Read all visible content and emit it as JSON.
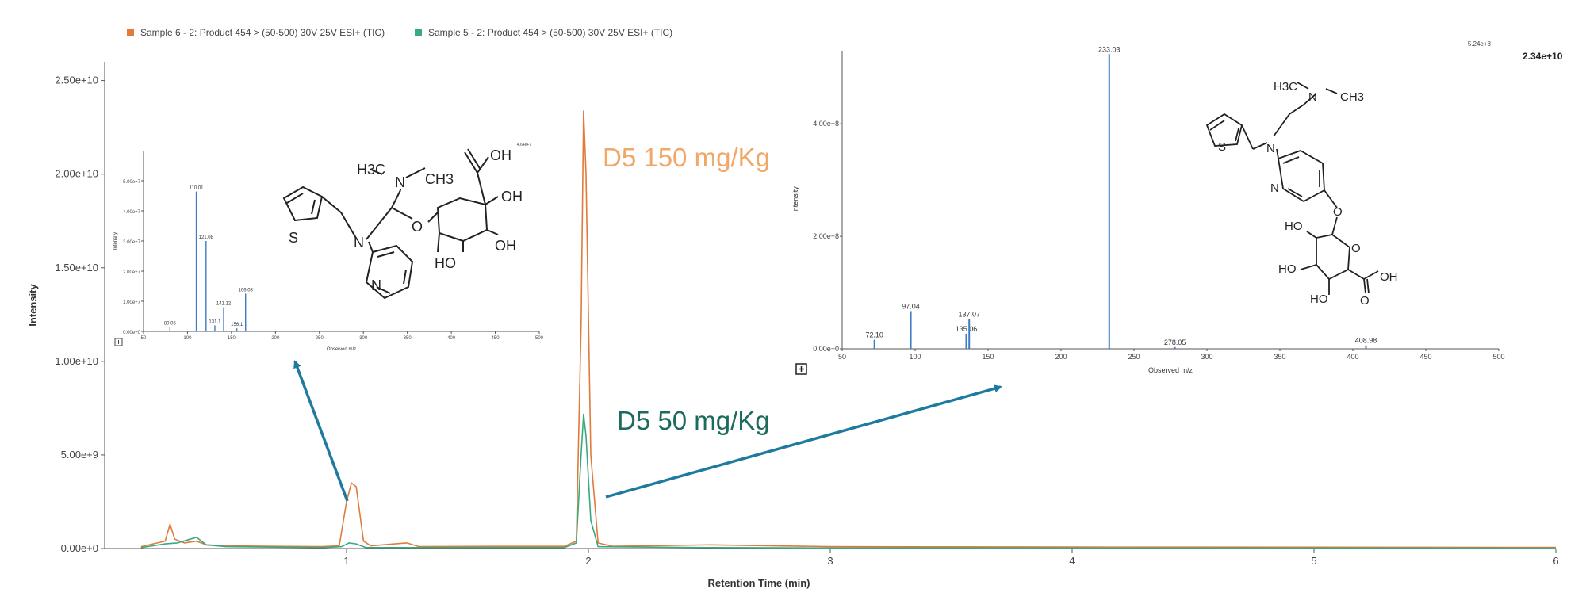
{
  "legend": [
    {
      "label": "Sample 6 - 2: Product 454 > (50-500) 30V 25V ESI+ (TIC)",
      "color": "#e07b3c"
    },
    {
      "label": "Sample 5 - 2: Product 454 > (50-500) 30V 25V ESI+ (TIC)",
      "color": "#3aa882"
    }
  ],
  "annotations": {
    "d5_150": "D5 150 mg/Kg",
    "d5_50": "D5 50 mg/Kg",
    "max_label": "2.34e+10",
    "arrow_color": "#1f7aa0",
    "d5_150_color": "#f0a868",
    "d5_50_color": "#1d6b5e"
  },
  "chart_data": [
    {
      "type": "line",
      "xlabel": "Retention Time (min)",
      "ylabel": "Intensity",
      "xlim": [
        0,
        6
      ],
      "ylim": [
        0,
        26000000000.0
      ],
      "x_ticks": [
        1,
        2,
        3,
        4,
        5,
        6
      ],
      "y_ticks": [
        0,
        5000000000.0,
        10000000000.0,
        15000000000.0,
        20000000000.0,
        25000000000.0
      ],
      "y_tick_labels": [
        "0.00e+0",
        "5.00e+9",
        "1.00e+10",
        "1.50e+10",
        "2.00e+10",
        "2.50e+10"
      ],
      "series": [
        {
          "name": "Sample 6 - 2: Product 454 > (50-500) 30V 25V ESI+ (TIC)",
          "color": "#e07b3c",
          "points": [
            [
              0.15,
              100000000.0
            ],
            [
              0.2,
              250000000.0
            ],
            [
              0.25,
              400000000.0
            ],
            [
              0.27,
              1300000000.0
            ],
            [
              0.29,
              500000000.0
            ],
            [
              0.33,
              300000000.0
            ],
            [
              0.38,
              400000000.0
            ],
            [
              0.42,
              200000000.0
            ],
            [
              0.5,
              150000000.0
            ],
            [
              0.7,
              120000000.0
            ],
            [
              0.9,
              100000000.0
            ],
            [
              0.97,
              150000000.0
            ],
            [
              1.0,
              2500000000.0
            ],
            [
              1.02,
              3500000000.0
            ],
            [
              1.04,
              3300000000.0
            ],
            [
              1.07,
              400000000.0
            ],
            [
              1.1,
              150000000.0
            ],
            [
              1.25,
              300000000.0
            ],
            [
              1.3,
              100000000.0
            ],
            [
              1.6,
              120000000.0
            ],
            [
              1.9,
              120000000.0
            ],
            [
              1.95,
              400000000.0
            ],
            [
              1.97,
              12000000000.0
            ],
            [
              1.98,
              23400000000.0
            ],
            [
              1.99,
              20000000000.0
            ],
            [
              2.01,
              5000000000.0
            ],
            [
              2.04,
              300000000.0
            ],
            [
              2.1,
              120000000.0
            ],
            [
              2.5,
              200000000.0
            ],
            [
              3.0,
              100000000.0
            ],
            [
              4.0,
              80000000.0
            ],
            [
              5.0,
              70000000.0
            ],
            [
              6.0,
              60000000.0
            ]
          ]
        },
        {
          "name": "Sample 5 - 2: Product 454 > (50-500) 30V 25V ESI+ (TIC)",
          "color": "#3aa882",
          "points": [
            [
              0.15,
              50000000.0
            ],
            [
              0.2,
              150000000.0
            ],
            [
              0.25,
              250000000.0
            ],
            [
              0.3,
              300000000.0
            ],
            [
              0.38,
              600000000.0
            ],
            [
              0.42,
              200000000.0
            ],
            [
              0.5,
              100000000.0
            ],
            [
              0.9,
              50000000.0
            ],
            [
              0.98,
              100000000.0
            ],
            [
              1.01,
              300000000.0
            ],
            [
              1.04,
              250000000.0
            ],
            [
              1.08,
              50000000.0
            ],
            [
              1.9,
              50000000.0
            ],
            [
              1.95,
              300000000.0
            ],
            [
              1.97,
              5000000000.0
            ],
            [
              1.98,
              7200000000.0
            ],
            [
              1.99,
              6000000000.0
            ],
            [
              2.01,
              1500000000.0
            ],
            [
              2.04,
              100000000.0
            ],
            [
              2.5,
              50000000.0
            ],
            [
              3.0,
              30000000.0
            ],
            [
              6.0,
              20000000.0
            ]
          ]
        }
      ]
    },
    {
      "type": "bar",
      "xlabel": "Observed m/z",
      "ylabel": "Intensity",
      "max_label": "4.64e+7",
      "xlim": [
        50,
        500
      ],
      "ylim": [
        0,
        60000000.0
      ],
      "x_ticks": [
        50,
        100,
        150,
        200,
        250,
        300,
        350,
        400,
        450,
        500
      ],
      "y_ticks": [
        0,
        10000000.0,
        20000000.0,
        30000000.0,
        40000000.0,
        50000000.0
      ],
      "y_tick_labels": [
        "0.00e+0",
        "1.00e+7",
        "2.00e+7",
        "3.00e+7",
        "4.00e+7",
        "5.00e+7"
      ],
      "peaks": [
        {
          "mz": 80.05,
          "intensity": 1500000.0,
          "label": "80.05"
        },
        {
          "mz": 110.01,
          "intensity": 46400000.0,
          "label": "110.01"
        },
        {
          "mz": 121.08,
          "intensity": 30000000.0,
          "label": "121.08"
        },
        {
          "mz": 131.1,
          "intensity": 2000000.0,
          "label": "131.1"
        },
        {
          "mz": 141.12,
          "intensity": 8000000.0,
          "label": "141.12"
        },
        {
          "mz": 156.1,
          "intensity": 1000000.0,
          "label": "156.1"
        },
        {
          "mz": 166.08,
          "intensity": 12500000.0,
          "label": "166.08"
        }
      ],
      "structure": [
        "H3C",
        "CH3",
        "N",
        "O",
        "OH",
        "OH",
        "OH",
        "HO",
        "S",
        "N",
        "N"
      ]
    },
    {
      "type": "bar",
      "xlabel": "Observed m/z",
      "ylabel": "Intensity",
      "max_label": "5.24e+8",
      "xlim": [
        50,
        500
      ],
      "ylim": [
        0,
        530000000.0
      ],
      "x_ticks": [
        50,
        100,
        150,
        200,
        250,
        300,
        350,
        400,
        450,
        500
      ],
      "y_ticks": [
        0,
        200000000.0,
        400000000.0
      ],
      "y_tick_labels": [
        "0.00e+0",
        "2.00e+8",
        "4.00e+8"
      ],
      "peaks": [
        {
          "mz": 72.1,
          "intensity": 16000000.0,
          "label": "72.10"
        },
        {
          "mz": 97.04,
          "intensity": 67000000.0,
          "label": "97.04"
        },
        {
          "mz": 135.06,
          "intensity": 27000000.0,
          "label": "135.06"
        },
        {
          "mz": 137.07,
          "intensity": 53000000.0,
          "label": "137.07"
        },
        {
          "mz": 233.03,
          "intensity": 524000000.0,
          "label": "233.03"
        },
        {
          "mz": 278.05,
          "intensity": 3000000.0,
          "label": "278.05"
        },
        {
          "mz": 408.98,
          "intensity": 6000000.0,
          "label": "408.98"
        }
      ],
      "structure": [
        "H3C",
        "N",
        "CH3",
        "S",
        "N",
        "N",
        "O",
        "HO",
        "O",
        "HO",
        "OH",
        "HO",
        "O"
      ]
    }
  ]
}
